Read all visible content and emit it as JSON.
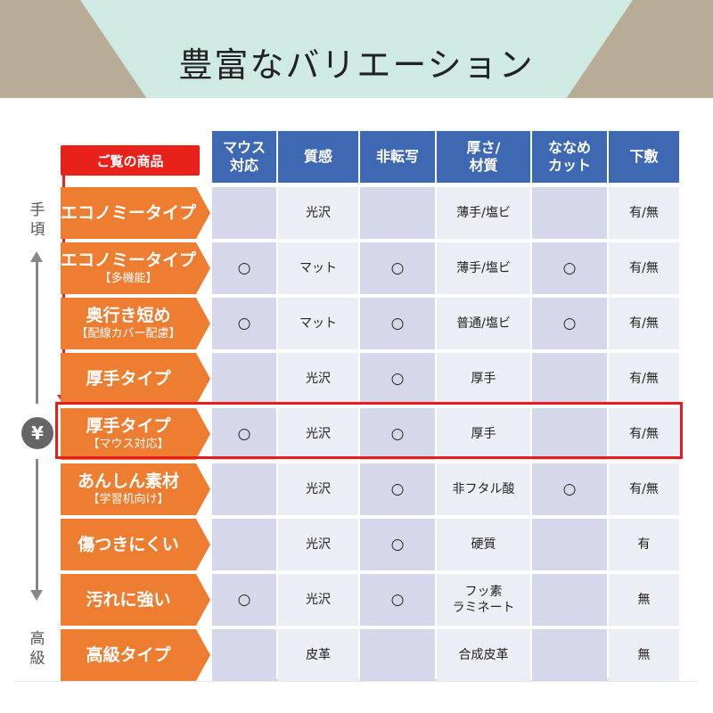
{
  "title": "豊富なバリエーション",
  "callout_label": "ご覧の商品",
  "side_top": "手\n頃",
  "side_bottom": "高\n級",
  "yen_symbol": "¥",
  "colors": {
    "header_blue": "#3f68b2",
    "label_orange": "#ed7d31",
    "row_dark": "#d4d8ea",
    "row_light": "#eceef5",
    "highlight_red": "#e51d1d"
  },
  "headers": [
    "マウス\n対応",
    "質感",
    "非転写",
    "厚さ/\n材質",
    "ななめ\nカット",
    "下敷"
  ],
  "rows": [
    {
      "label": "エコノミータイプ",
      "sub": "",
      "cells": [
        "",
        "光沢",
        "",
        "薄手/塩ビ",
        "",
        "有/無"
      ]
    },
    {
      "label": "エコノミータイプ",
      "sub": "【多機能】",
      "cells": [
        "○",
        "マット",
        "○",
        "薄手/塩ビ",
        "○",
        "有/無"
      ]
    },
    {
      "label": "奥行き短め",
      "sub": "【配線カバー配慮】",
      "cells": [
        "○",
        "マット",
        "○",
        "普通/塩ビ",
        "○",
        "有/無"
      ]
    },
    {
      "label": "厚手タイプ",
      "sub": "",
      "cells": [
        "",
        "光沢",
        "○",
        "厚手",
        "",
        "有/無"
      ]
    },
    {
      "label": "厚手タイプ",
      "sub": "【マウス対応】",
      "cells": [
        "○",
        "光沢",
        "○",
        "厚手",
        "",
        "有/無"
      ]
    },
    {
      "label": "あんしん素材",
      "sub": "【学習机向け】",
      "cells": [
        "",
        "光沢",
        "○",
        "非フタル酸",
        "○",
        "有/無"
      ]
    },
    {
      "label": "傷つきにくい",
      "sub": "",
      "cells": [
        "",
        "光沢",
        "○",
        "硬質",
        "",
        "有"
      ]
    },
    {
      "label": "汚れに強い",
      "sub": "",
      "cells": [
        "○",
        "光沢",
        "○",
        "フッ素\nラミネート",
        "",
        "無"
      ]
    },
    {
      "label": "高級タイプ",
      "sub": "",
      "cells": [
        "",
        "皮革",
        "",
        "合成皮革",
        "",
        "無"
      ]
    }
  ]
}
